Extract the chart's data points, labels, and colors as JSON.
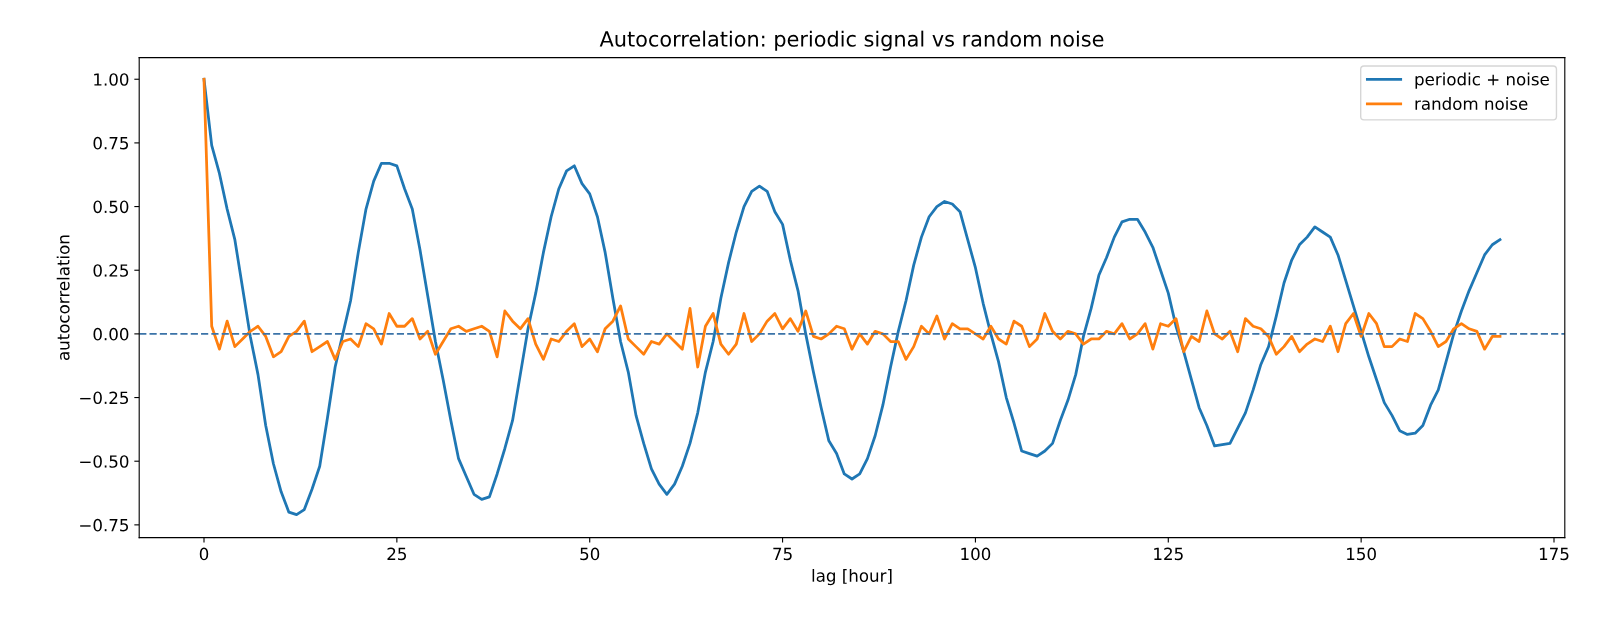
{
  "chart_data": {
    "type": "line",
    "title": "Autocorrelation: periodic signal vs random noise",
    "xlabel": "lag [hour]",
    "ylabel": "autocorrelation",
    "x": [
      0,
      1,
      2,
      3,
      4,
      5,
      6,
      7,
      8,
      9,
      10,
      11,
      12,
      13,
      14,
      15,
      16,
      17,
      18,
      19,
      20,
      21,
      22,
      23,
      24,
      25,
      26,
      27,
      28,
      29,
      30,
      31,
      32,
      33,
      34,
      35,
      36,
      37,
      38,
      39,
      40,
      41,
      42,
      43,
      44,
      45,
      46,
      47,
      48,
      49,
      50,
      51,
      52,
      53,
      54,
      55,
      56,
      57,
      58,
      59,
      60,
      61,
      62,
      63,
      64,
      65,
      66,
      67,
      68,
      69,
      70,
      71,
      72,
      73,
      74,
      75,
      76,
      77,
      78,
      79,
      80,
      81,
      82,
      83,
      84,
      85,
      86,
      87,
      88,
      89,
      90,
      91,
      92,
      93,
      94,
      95,
      96,
      97,
      98,
      99,
      100,
      101,
      102,
      103,
      104,
      105,
      106,
      107,
      108,
      109,
      110,
      111,
      112,
      113,
      114,
      115,
      116,
      117,
      118,
      119,
      120,
      121,
      122,
      123,
      124,
      125,
      126,
      127,
      128,
      129,
      130,
      131,
      132,
      133,
      134,
      135,
      136,
      137,
      138,
      139,
      140,
      141,
      142,
      143,
      144,
      145,
      146,
      147,
      148,
      149,
      150,
      151,
      152,
      153,
      154,
      155,
      156,
      157,
      158,
      159,
      160,
      161,
      162,
      163,
      164,
      165,
      166,
      167,
      168
    ],
    "series": [
      {
        "name": "periodic + noise",
        "color": "#1f77b4",
        "values": [
          1.0,
          0.74,
          0.63,
          0.49,
          0.37,
          0.18,
          -0.01,
          -0.16,
          -0.36,
          -0.51,
          -0.62,
          -0.7,
          -0.71,
          -0.69,
          -0.61,
          -0.52,
          -0.33,
          -0.13,
          0.0,
          0.13,
          0.32,
          0.49,
          0.6,
          0.67,
          0.67,
          0.66,
          0.57,
          0.49,
          0.33,
          0.15,
          -0.03,
          -0.18,
          -0.34,
          -0.49,
          -0.56,
          -0.63,
          -0.65,
          -0.64,
          -0.55,
          -0.45,
          -0.34,
          -0.16,
          0.02,
          0.16,
          0.32,
          0.46,
          0.57,
          0.64,
          0.66,
          0.59,
          0.55,
          0.46,
          0.32,
          0.14,
          -0.03,
          -0.15,
          -0.32,
          -0.43,
          -0.53,
          -0.59,
          -0.63,
          -0.59,
          -0.52,
          -0.43,
          -0.31,
          -0.15,
          -0.03,
          0.14,
          0.28,
          0.4,
          0.5,
          0.56,
          0.58,
          0.56,
          0.48,
          0.43,
          0.29,
          0.17,
          0.0,
          -0.15,
          -0.29,
          -0.42,
          -0.47,
          -0.55,
          -0.57,
          -0.55,
          -0.49,
          -0.4,
          -0.28,
          -0.13,
          0.01,
          0.13,
          0.27,
          0.38,
          0.46,
          0.5,
          0.52,
          0.51,
          0.48,
          0.37,
          0.26,
          0.12,
          0.0,
          -0.11,
          -0.25,
          -0.35,
          -0.46,
          -0.47,
          -0.48,
          -0.46,
          -0.43,
          -0.34,
          -0.26,
          -0.16,
          -0.01,
          0.1,
          0.23,
          0.3,
          0.38,
          0.44,
          0.45,
          0.45,
          0.4,
          0.34,
          0.25,
          0.16,
          0.03,
          -0.07,
          -0.18,
          -0.29,
          -0.36,
          -0.44,
          -0.435,
          -0.43,
          -0.37,
          -0.31,
          -0.22,
          -0.12,
          -0.05,
          0.07,
          0.2,
          0.29,
          0.35,
          0.38,
          0.42,
          0.4,
          0.38,
          0.31,
          0.21,
          0.11,
          0.01,
          -0.09,
          -0.18,
          -0.27,
          -0.32,
          -0.38,
          -0.395,
          -0.39,
          -0.36,
          -0.28,
          -0.22,
          -0.11,
          0.0,
          0.09,
          0.17,
          0.24,
          0.31,
          0.35,
          0.37
        ]
      },
      {
        "name": "random noise",
        "color": "#ff7f0e",
        "values": [
          1.0,
          0.03,
          -0.06,
          0.05,
          -0.05,
          -0.02,
          0.01,
          0.03,
          -0.01,
          -0.09,
          -0.07,
          -0.01,
          0.01,
          0.05,
          -0.07,
          -0.05,
          -0.03,
          -0.1,
          -0.03,
          -0.02,
          -0.05,
          0.04,
          0.02,
          -0.04,
          0.08,
          0.03,
          0.03,
          0.06,
          -0.02,
          0.01,
          -0.08,
          -0.03,
          0.02,
          0.03,
          0.01,
          0.02,
          0.03,
          0.01,
          -0.09,
          0.09,
          0.05,
          0.02,
          0.06,
          -0.04,
          -0.1,
          -0.02,
          -0.03,
          0.01,
          0.04,
          -0.05,
          -0.02,
          -0.07,
          0.02,
          0.05,
          0.11,
          -0.02,
          -0.05,
          -0.08,
          -0.03,
          -0.04,
          0.0,
          -0.03,
          -0.06,
          0.1,
          -0.13,
          0.03,
          0.08,
          -0.04,
          -0.08,
          -0.04,
          0.08,
          -0.03,
          0.0,
          0.05,
          0.08,
          0.02,
          0.06,
          0.01,
          0.09,
          -0.01,
          -0.02,
          0.0,
          0.03,
          0.02,
          -0.06,
          0.0,
          -0.04,
          0.01,
          0.0,
          -0.03,
          -0.03,
          -0.1,
          -0.05,
          0.03,
          0.0,
          0.07,
          -0.02,
          0.04,
          0.02,
          0.02,
          0.0,
          -0.02,
          0.03,
          -0.02,
          -0.04,
          0.05,
          0.03,
          -0.05,
          -0.02,
          0.08,
          0.01,
          -0.02,
          0.01,
          0.0,
          -0.04,
          -0.02,
          -0.02,
          0.01,
          0.0,
          0.04,
          -0.02,
          0.0,
          0.04,
          -0.06,
          0.04,
          0.03,
          0.06,
          -0.07,
          -0.01,
          -0.03,
          0.09,
          0.0,
          -0.02,
          0.01,
          -0.07,
          0.06,
          0.03,
          0.02,
          -0.01,
          -0.08,
          -0.05,
          -0.01,
          -0.07,
          -0.04,
          -0.02,
          -0.03,
          0.03,
          -0.07,
          0.04,
          0.08,
          -0.01,
          0.08,
          0.04,
          -0.05,
          -0.05,
          -0.02,
          -0.03,
          0.08,
          0.06,
          0.01,
          -0.05,
          -0.03,
          0.02,
          0.04,
          0.02,
          0.01,
          -0.06,
          -0.01,
          -0.01
        ]
      }
    ],
    "xlim": [
      -8.4,
      176.4
    ],
    "xticks": [
      0,
      25,
      50,
      75,
      100,
      125,
      150,
      175
    ],
    "ylim": [
      -0.8,
      1.085
    ],
    "yticks": [
      {
        "value": -0.75,
        "label": "−0.75"
      },
      {
        "value": -0.5,
        "label": "−0.50"
      },
      {
        "value": -0.25,
        "label": "−0.25"
      },
      {
        "value": 0,
        "label": "0.00"
      },
      {
        "value": 0.25,
        "label": "0.25"
      },
      {
        "value": 0.5,
        "label": "0.50"
      },
      {
        "value": 0.75,
        "label": "0.75"
      },
      {
        "value": 1,
        "label": "1.00"
      }
    ],
    "ref_lines": [
      {
        "axis": "y",
        "value": 0,
        "color": "#3b73a8",
        "line_style": "dashed"
      }
    ],
    "grid": false,
    "legend": "top right",
    "marker": "none",
    "line_style": "solid"
  }
}
